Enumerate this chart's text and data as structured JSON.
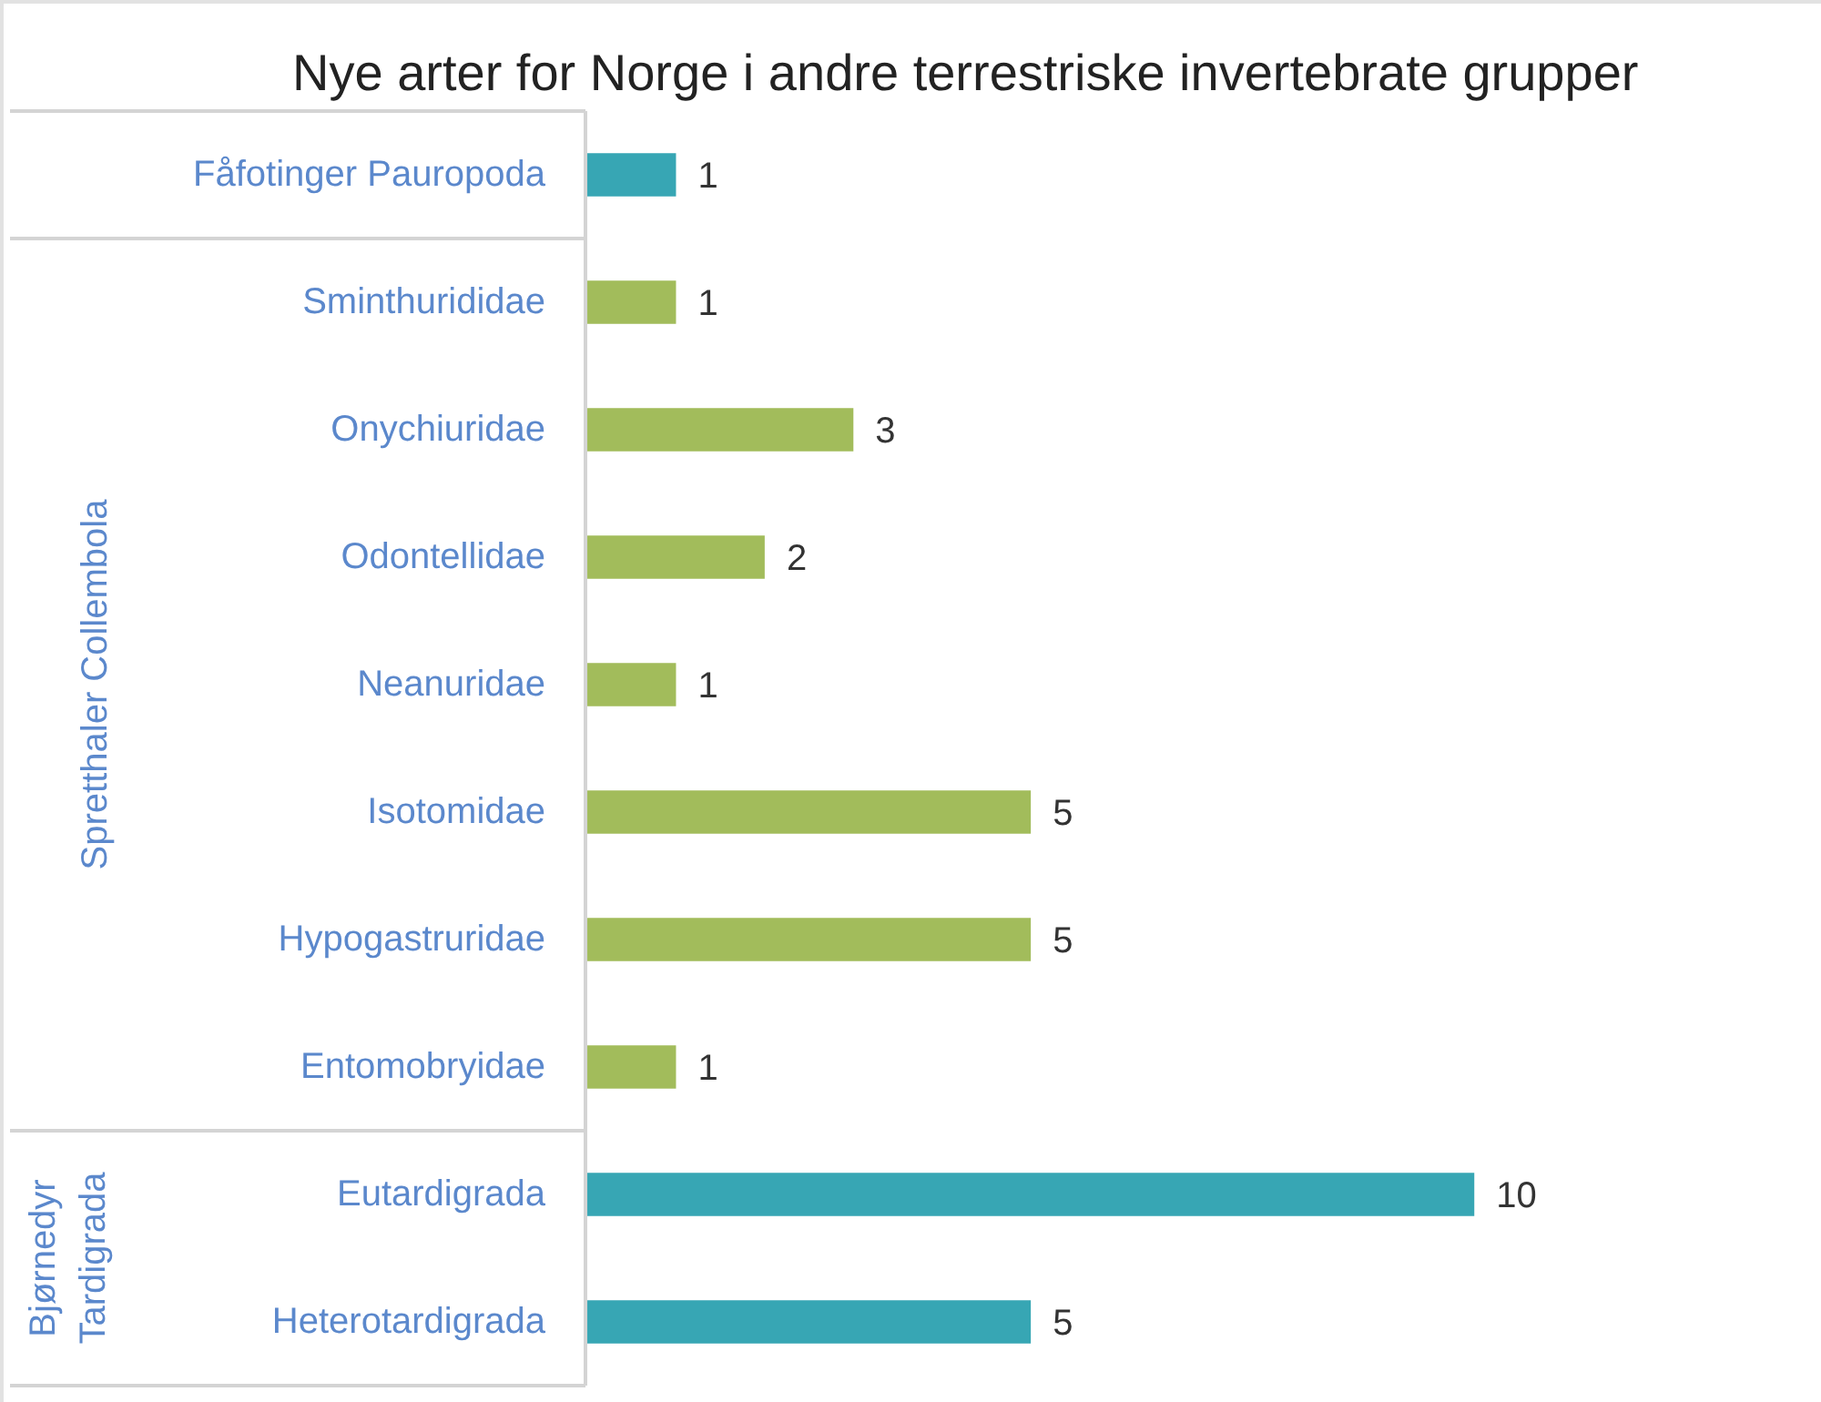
{
  "chart_data": {
    "type": "bar",
    "orientation": "horizontal",
    "title": "Nye arter for Norge i andre terrestriske invertebrate grupper",
    "categories": [
      "Fåfotinger Pauropoda",
      "Sminthurididae",
      "Onychiuridae",
      "Odontellidae",
      "Neanuridae",
      "Isotomidae",
      "Hypogastruridae",
      "Entomobryidae",
      "Eutardigrada",
      "Heterotardigrada"
    ],
    "values": [
      1,
      1,
      3,
      2,
      1,
      5,
      5,
      1,
      10,
      5
    ],
    "colors": [
      "#37a6b4",
      "#a2bc5b",
      "#a2bc5b",
      "#a2bc5b",
      "#a2bc5b",
      "#a2bc5b",
      "#a2bc5b",
      "#a2bc5b",
      "#37a6b4",
      "#37a6b4"
    ],
    "data_labels": true,
    "annotations": [
      "Spretthaler Collembola",
      "Bjørnedyr Tardigrada"
    ]
  }
}
